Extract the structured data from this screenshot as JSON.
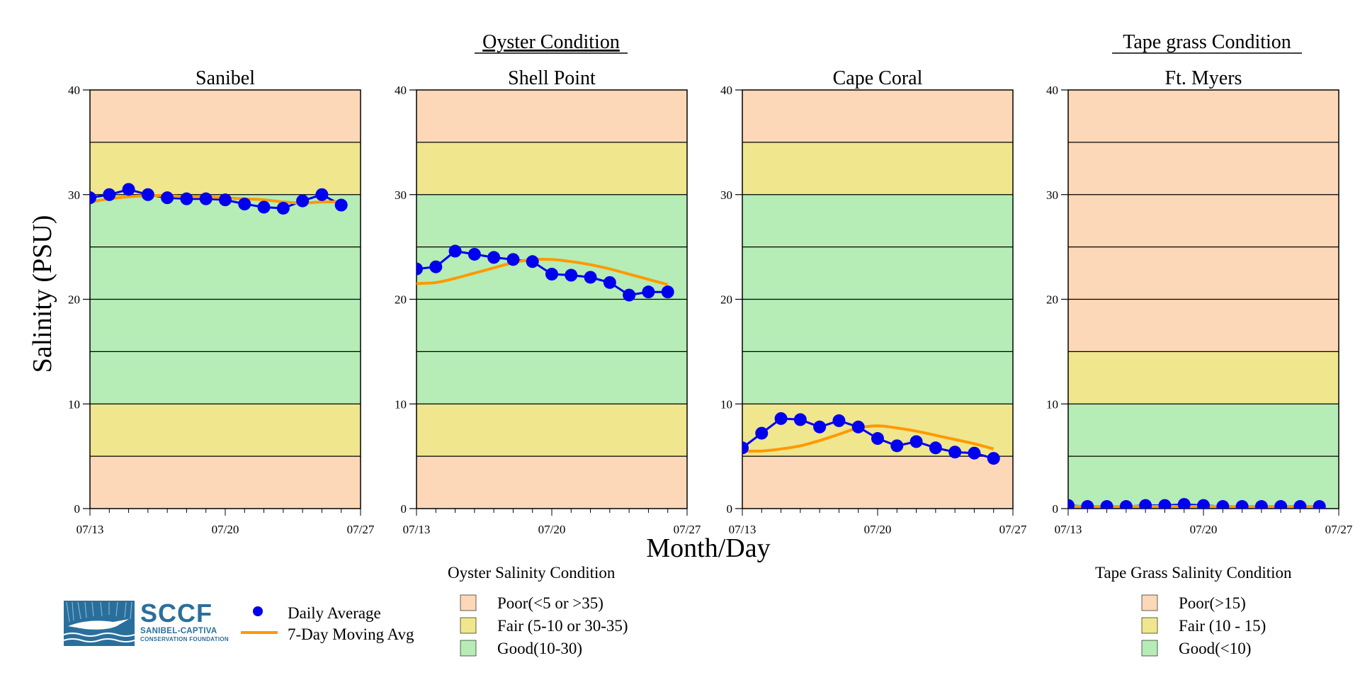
{
  "group_titles": {
    "oyster": "Oyster Condition",
    "tapegrass": "Tape grass Condition"
  },
  "y_axis_label": "Salinity (PSU)",
  "x_axis_label": "Month/Day",
  "legend": {
    "daily_average": "Daily Average",
    "moving_avg": "7-Day Moving Avg",
    "daily_color": "#0000ee",
    "moving_color": "#ff9900",
    "oyster": {
      "title": "Oyster Salinity Condition",
      "items": [
        "Poor(<5 or >35)",
        "Fair (5-10 or 30-35)",
        "Good(10-30)"
      ]
    },
    "tapegrass": {
      "title": "Tape Grass Salinity Condition",
      "items": [
        "Poor(>15)",
        "Fair (10 - 15)",
        "Good(<10)"
      ]
    }
  },
  "colors": {
    "poor": "#fcd8b8",
    "fair": "#efe68e",
    "good": "#b6ecb6"
  },
  "logo": {
    "main": "SCCF",
    "sub1": "SANIBEL-CAPTIVA",
    "sub2": "CONSERVATION FOUNDATION"
  },
  "chart_data": [
    {
      "type": "line",
      "title": "Sanibel",
      "group": "oyster",
      "xlabel": "Month/Day",
      "ylabel": "Salinity (PSU)",
      "ylim": [
        0,
        40
      ],
      "yticks": [
        0,
        10,
        20,
        30,
        40
      ],
      "xlim": [
        "07/13",
        "07/27"
      ],
      "xticks": [
        "07/13",
        "07/20",
        "07/27"
      ],
      "grid": true,
      "bands": [
        {
          "from": 0,
          "to": 5,
          "condition": "poor"
        },
        {
          "from": 5,
          "to": 10,
          "condition": "fair"
        },
        {
          "from": 10,
          "to": 30,
          "condition": "good"
        },
        {
          "from": 30,
          "to": 35,
          "condition": "fair"
        },
        {
          "from": 35,
          "to": 40,
          "condition": "poor"
        }
      ],
      "x": [
        "07/13",
        "07/14",
        "07/15",
        "07/16",
        "07/17",
        "07/18",
        "07/19",
        "07/20",
        "07/21",
        "07/22",
        "07/23",
        "07/24",
        "07/25",
        "07/26"
      ],
      "series": [
        {
          "name": "Daily Average",
          "values": [
            29.7,
            30.0,
            30.5,
            30.0,
            29.7,
            29.6,
            29.6,
            29.5,
            29.1,
            28.8,
            28.7,
            29.4,
            30.0,
            29.0
          ]
        },
        {
          "name": "7-Day Moving Avg",
          "values": [
            29.3,
            29.6,
            29.8,
            29.9,
            29.9,
            29.8,
            29.8,
            29.7,
            29.6,
            29.5,
            29.3,
            29.2,
            29.3,
            29.3
          ]
        }
      ]
    },
    {
      "type": "line",
      "title": "Shell Point",
      "group": "oyster",
      "xlabel": "Month/Day",
      "ylabel": "Salinity (PSU)",
      "ylim": [
        0,
        40
      ],
      "yticks": [
        0,
        10,
        20,
        30,
        40
      ],
      "xlim": [
        "07/13",
        "07/27"
      ],
      "xticks": [
        "07/13",
        "07/20",
        "07/27"
      ],
      "grid": true,
      "bands": [
        {
          "from": 0,
          "to": 5,
          "condition": "poor"
        },
        {
          "from": 5,
          "to": 10,
          "condition": "fair"
        },
        {
          "from": 10,
          "to": 30,
          "condition": "good"
        },
        {
          "from": 30,
          "to": 35,
          "condition": "fair"
        },
        {
          "from": 35,
          "to": 40,
          "condition": "poor"
        }
      ],
      "x": [
        "07/13",
        "07/14",
        "07/15",
        "07/16",
        "07/17",
        "07/18",
        "07/19",
        "07/20",
        "07/21",
        "07/22",
        "07/23",
        "07/24",
        "07/25",
        "07/26"
      ],
      "series": [
        {
          "name": "Daily Average",
          "values": [
            22.9,
            23.1,
            24.6,
            24.3,
            24.0,
            23.8,
            23.6,
            22.4,
            22.3,
            22.1,
            21.6,
            20.4,
            20.7,
            20.7
          ]
        },
        {
          "name": "7-Day Moving Avg",
          "values": [
            21.5,
            21.6,
            22.0,
            22.5,
            23.0,
            23.5,
            23.8,
            23.8,
            23.6,
            23.3,
            22.9,
            22.4,
            21.9,
            21.4
          ]
        }
      ]
    },
    {
      "type": "line",
      "title": "Cape Coral",
      "group": "oyster",
      "xlabel": "Month/Day",
      "ylabel": "Salinity (PSU)",
      "ylim": [
        0,
        40
      ],
      "yticks": [
        0,
        10,
        20,
        30,
        40
      ],
      "xlim": [
        "07/13",
        "07/27"
      ],
      "xticks": [
        "07/13",
        "07/20",
        "07/27"
      ],
      "grid": true,
      "bands": [
        {
          "from": 0,
          "to": 5,
          "condition": "poor"
        },
        {
          "from": 5,
          "to": 10,
          "condition": "fair"
        },
        {
          "from": 10,
          "to": 30,
          "condition": "good"
        },
        {
          "from": 30,
          "to": 35,
          "condition": "fair"
        },
        {
          "from": 35,
          "to": 40,
          "condition": "poor"
        }
      ],
      "x": [
        "07/13",
        "07/14",
        "07/15",
        "07/16",
        "07/17",
        "07/18",
        "07/19",
        "07/20",
        "07/21",
        "07/22",
        "07/23",
        "07/24",
        "07/25",
        "07/26"
      ],
      "series": [
        {
          "name": "Daily Average",
          "values": [
            5.8,
            7.2,
            8.6,
            8.5,
            7.8,
            8.4,
            7.8,
            6.7,
            6.0,
            6.4,
            5.8,
            5.4,
            5.3,
            4.8
          ]
        },
        {
          "name": "7-Day Moving Avg",
          "values": [
            5.5,
            5.5,
            5.7,
            6.0,
            6.5,
            7.1,
            7.7,
            7.9,
            7.7,
            7.4,
            7.0,
            6.6,
            6.2,
            5.7
          ]
        }
      ]
    },
    {
      "type": "line",
      "title": "Ft. Myers",
      "group": "tapegrass",
      "xlabel": "Month/Day",
      "ylabel": "Salinity (PSU)",
      "ylim": [
        0,
        40
      ],
      "yticks": [
        0,
        10,
        20,
        30,
        40
      ],
      "xlim": [
        "07/13",
        "07/27"
      ],
      "xticks": [
        "07/13",
        "07/20",
        "07/27"
      ],
      "grid": true,
      "bands": [
        {
          "from": 0,
          "to": 10,
          "condition": "good"
        },
        {
          "from": 10,
          "to": 15,
          "condition": "fair"
        },
        {
          "from": 15,
          "to": 40,
          "condition": "poor"
        }
      ],
      "x": [
        "07/13",
        "07/14",
        "07/15",
        "07/16",
        "07/17",
        "07/18",
        "07/19",
        "07/20",
        "07/21",
        "07/22",
        "07/23",
        "07/24",
        "07/25",
        "07/26"
      ],
      "series": [
        {
          "name": "Daily Average",
          "values": [
            0.3,
            0.2,
            0.2,
            0.2,
            0.3,
            0.3,
            0.4,
            0.3,
            0.2,
            0.2,
            0.2,
            0.2,
            0.2,
            0.2
          ]
        },
        {
          "name": "7-Day Moving Avg",
          "values": [
            0.2,
            0.2,
            0.2,
            0.2,
            0.2,
            0.2,
            0.2,
            0.2,
            0.2,
            0.2,
            0.2,
            0.2,
            0.2,
            0.2
          ]
        }
      ]
    }
  ]
}
